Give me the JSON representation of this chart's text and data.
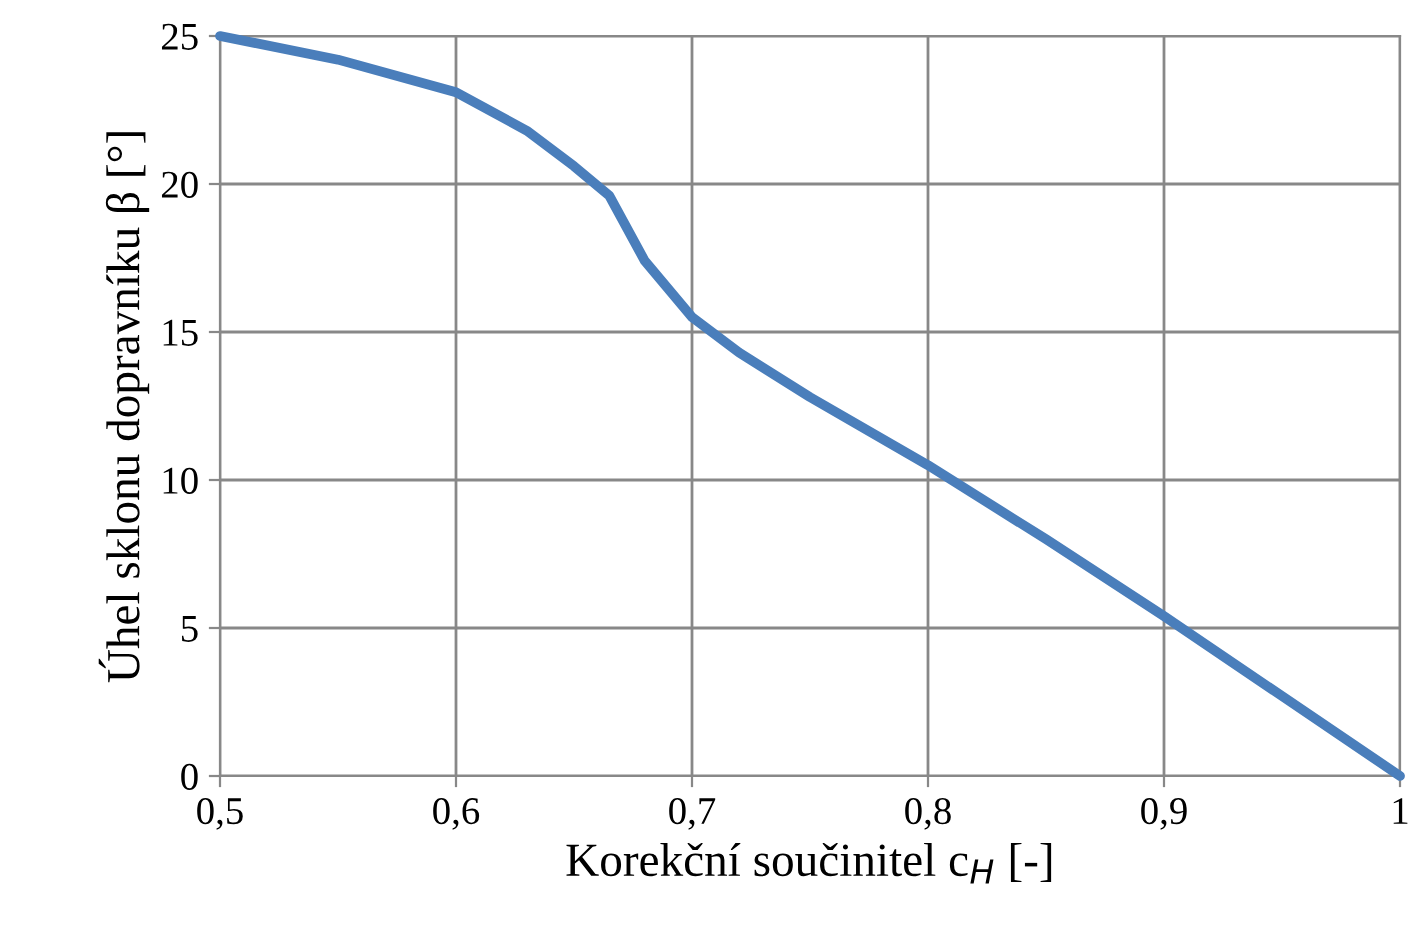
{
  "chart_data": {
    "type": "line",
    "xlabel": "Korekční součinitel c$_{H}$ [-]",
    "ylabel": "Úhel sklonu dopravníku β [°]",
    "series": [
      {
        "color": "#4a7ebb",
        "x": [
          0.5,
          0.55,
          0.6,
          0.63,
          0.65,
          0.665,
          0.68,
          0.7,
          0.72,
          0.75,
          0.8,
          0.85,
          0.9,
          0.95,
          1.0
        ],
        "values": [
          25,
          24.2,
          23.1,
          21.8,
          20.6,
          19.6,
          17.4,
          15.5,
          14.3,
          12.8,
          10.5,
          8.0,
          5.4,
          2.7,
          0
        ]
      }
    ],
    "xlim": [
      0.5,
      1.0
    ],
    "ylim": [
      0,
      25
    ],
    "xticks": [
      {
        "value": 0.5,
        "label": "0,5"
      },
      {
        "value": 0.6,
        "label": "0,6"
      },
      {
        "value": 0.7,
        "label": "0,7"
      },
      {
        "value": 0.8,
        "label": "0,8"
      },
      {
        "value": 0.9,
        "label": "0,9"
      },
      {
        "value": 1,
        "label": "1"
      }
    ],
    "yticks": [
      0,
      5,
      10,
      15,
      20,
      25
    ],
    "grid": true,
    "marker": "none",
    "line_style": "solid",
    "legend": false
  }
}
